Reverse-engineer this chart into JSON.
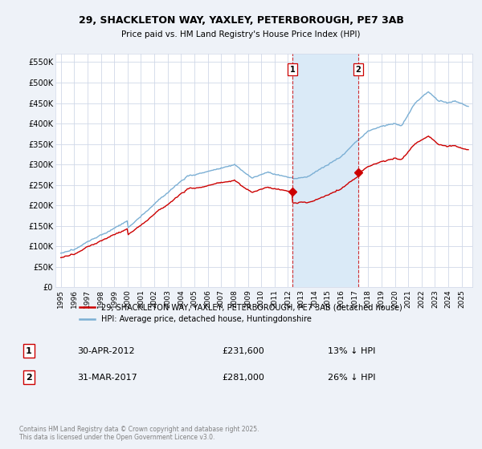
{
  "title1": "29, SHACKLETON WAY, YAXLEY, PETERBOROUGH, PE7 3AB",
  "title2": "Price paid vs. HM Land Registry's House Price Index (HPI)",
  "legend_label1": "29, SHACKLETON WAY, YAXLEY, PETERBOROUGH, PE7 3AB (detached house)",
  "legend_label2": "HPI: Average price, detached house, Huntingdonshire",
  "sale1_label": "1",
  "sale1_date": "30-APR-2012",
  "sale1_price": "£231,600",
  "sale1_pct": "13% ↓ HPI",
  "sale2_label": "2",
  "sale2_date": "31-MAR-2017",
  "sale2_price": "£281,000",
  "sale2_pct": "26% ↓ HPI",
  "footer": "Contains HM Land Registry data © Crown copyright and database right 2025.\nThis data is licensed under the Open Government Licence v3.0.",
  "hpi_color": "#7bafd4",
  "price_color": "#cc0000",
  "shade_color": "#daeaf7",
  "bg_color": "#eef2f8",
  "chart_bg": "#ffffff",
  "grid_color": "#d0d8e8",
  "sale1_year": 2012.33,
  "sale2_year": 2017.25,
  "sale1_price_val": 231600,
  "sale2_price_val": 281000,
  "ylim": [
    0,
    570000
  ],
  "xlim_left": 1994.6,
  "xlim_right": 2025.8
}
